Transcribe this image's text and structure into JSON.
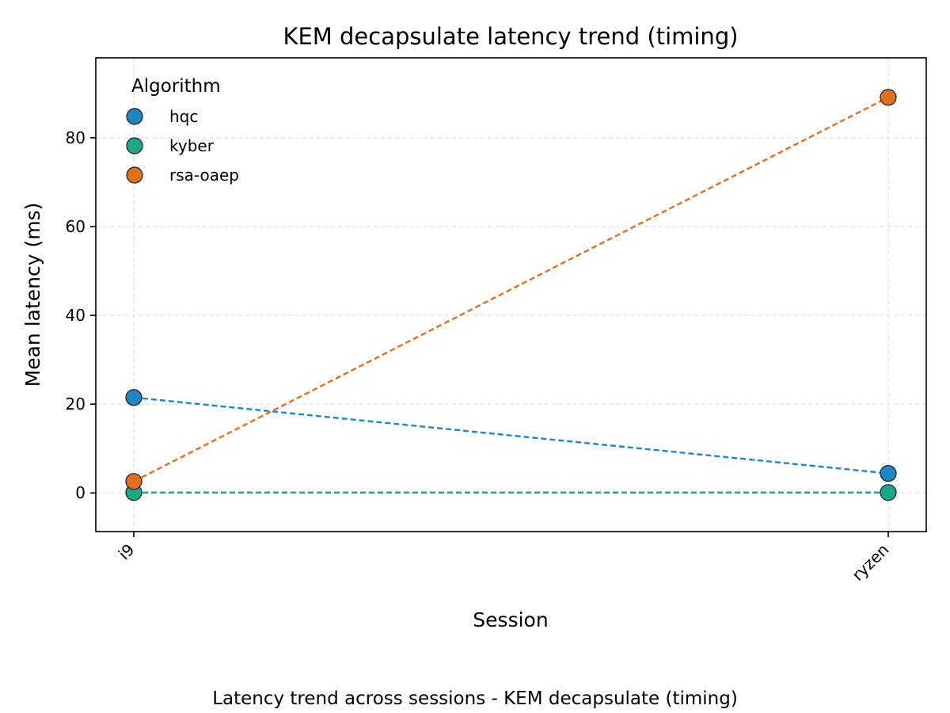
{
  "chart_data": {
    "type": "line",
    "title": "KEM decapsulate latency trend (timing)",
    "xlabel": "Session",
    "ylabel": "Mean latency (ms)",
    "caption": "Latency trend across sessions - KEM decapsulate (timing)",
    "categories": [
      "i9",
      "ryzen"
    ],
    "ylim": [
      -8.7,
      98
    ],
    "yticks": [
      0,
      20,
      40,
      60,
      80
    ],
    "grid": true,
    "legend": {
      "title": "Algorithm",
      "placement": "top-left"
    },
    "series": [
      {
        "name": "hqc",
        "color": "#1f86c4",
        "values": [
          21.5,
          4.4
        ]
      },
      {
        "name": "kyber",
        "color": "#1aa885",
        "values": [
          0.1,
          0.1
        ]
      },
      {
        "name": "rsa-oaep",
        "color": "#e07020",
        "values": [
          2.6,
          89.1
        ]
      }
    ]
  }
}
